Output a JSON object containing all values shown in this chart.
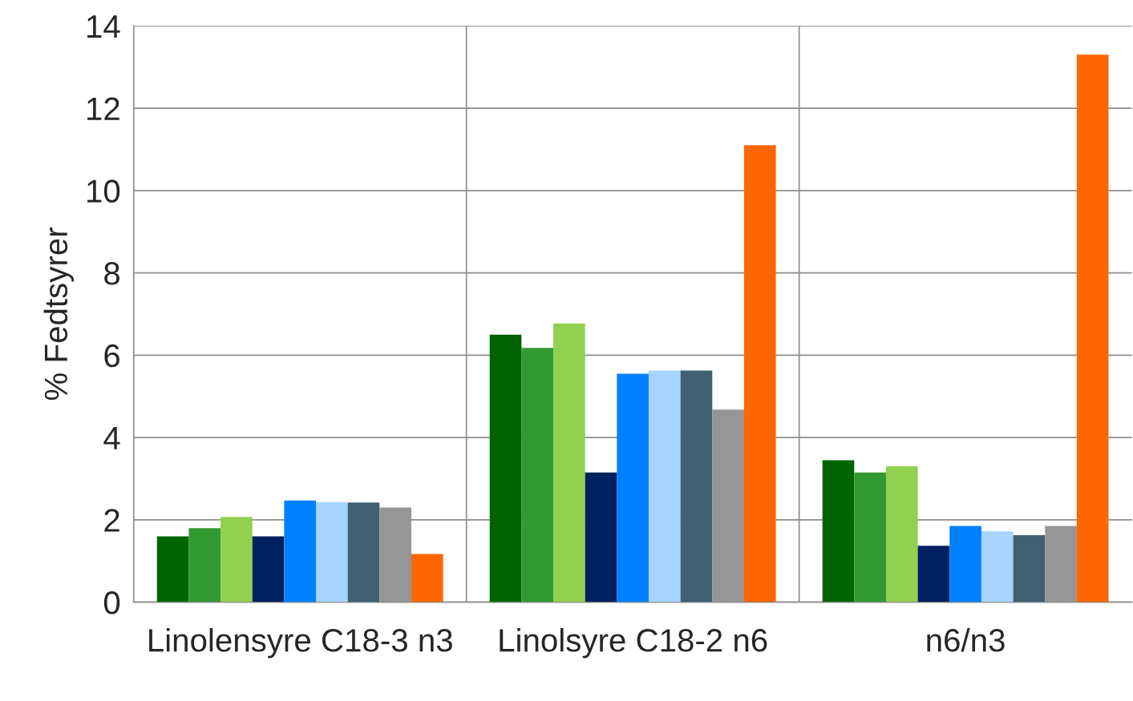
{
  "chart_data": {
    "type": "bar",
    "ylabel": "% Fedtsyrer",
    "categories": [
      "Linolensyre C18-3 n3",
      "Linolsyre C18-2 n6",
      "n6/n3"
    ],
    "series": [
      {
        "color": "#006400",
        "values": [
          1.6,
          6.5,
          3.45
        ]
      },
      {
        "color": "#339933",
        "values": [
          1.8,
          6.18,
          3.15
        ]
      },
      {
        "color": "#92d050",
        "values": [
          2.07,
          6.77,
          3.3
        ]
      },
      {
        "color": "#002060",
        "values": [
          1.6,
          3.15,
          1.37
        ]
      },
      {
        "color": "#0080ff",
        "values": [
          2.47,
          5.55,
          1.85
        ]
      },
      {
        "color": "#a6d4ff",
        "values": [
          2.43,
          5.63,
          1.72
        ]
      },
      {
        "color": "#3f6070",
        "values": [
          2.42,
          5.63,
          1.63
        ]
      },
      {
        "color": "#969696",
        "values": [
          2.3,
          4.68,
          1.85
        ]
      },
      {
        "color": "#ff6600",
        "values": [
          1.17,
          11.1,
          13.3
        ]
      }
    ],
    "ylim": [
      0,
      14
    ],
    "yticks": [
      0,
      2,
      4,
      6,
      8,
      10,
      12,
      14
    ],
    "grid": true
  }
}
